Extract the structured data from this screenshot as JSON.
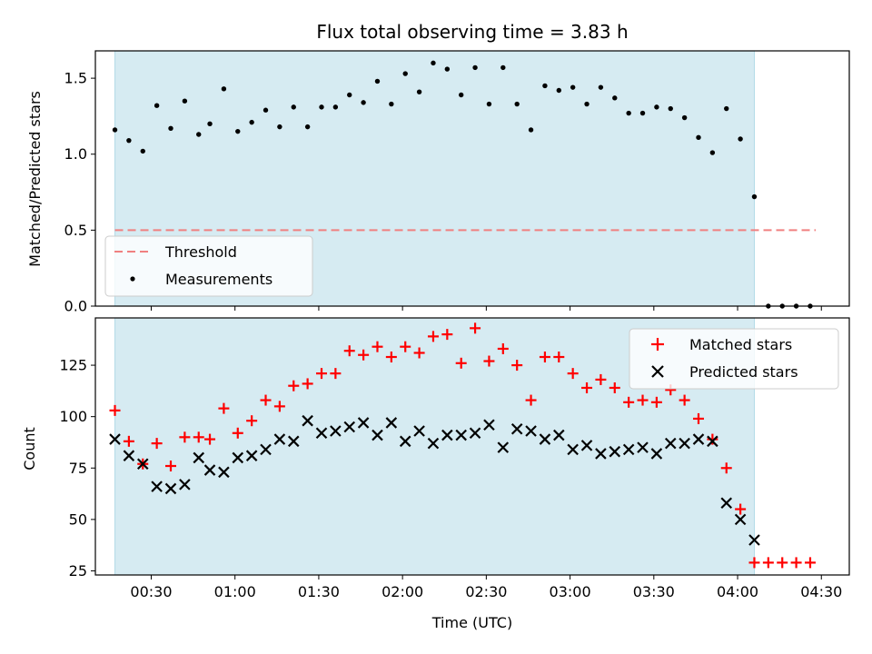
{
  "chart_data": [
    {
      "type": "scatter",
      "title": "Flux total observing time = 3.83 h",
      "xlabel": "",
      "ylabel": "Matched/Predicted stars",
      "xlim": [
        "00:10",
        "04:40"
      ],
      "ylim": [
        0,
        1.68
      ],
      "yticks": [
        "0.0",
        "0.5",
        "1.0",
        "1.5"
      ],
      "xticks": [
        "00:30",
        "01:00",
        "01:30",
        "02:00",
        "02:30",
        "03:00",
        "03:30",
        "04:00",
        "04:30"
      ],
      "shaded_span": [
        "00:17",
        "04:06"
      ],
      "threshold": {
        "name": "Threshold",
        "value": 0.5,
        "from": "00:17",
        "to": "04:28",
        "color": "#f08080",
        "style": "dashed"
      },
      "legend": {
        "position": "lower-left",
        "entries": [
          "Threshold",
          "Measurements"
        ]
      },
      "series": [
        {
          "name": "Measurements",
          "marker": "dot",
          "color": "#000000",
          "x": [
            "00:17",
            "00:22",
            "00:27",
            "00:32",
            "00:37",
            "00:42",
            "00:47",
            "00:51",
            "00:56",
            "01:01",
            "01:06",
            "01:11",
            "01:16",
            "01:21",
            "01:26",
            "01:31",
            "01:36",
            "01:41",
            "01:46",
            "01:51",
            "01:56",
            "02:01",
            "02:06",
            "02:11",
            "02:16",
            "02:21",
            "02:26",
            "02:31",
            "02:36",
            "02:41",
            "02:46",
            "02:51",
            "02:56",
            "03:01",
            "03:06",
            "03:11",
            "03:16",
            "03:21",
            "03:26",
            "03:31",
            "03:36",
            "03:41",
            "03:46",
            "03:51",
            "03:56",
            "04:01",
            "04:06",
            "04:11",
            "04:16",
            "04:21",
            "04:26"
          ],
          "y": [
            1.16,
            1.09,
            1.02,
            1.32,
            1.17,
            1.35,
            1.13,
            1.2,
            1.43,
            1.15,
            1.21,
            1.29,
            1.18,
            1.31,
            1.18,
            1.31,
            1.31,
            1.39,
            1.34,
            1.48,
            1.33,
            1.53,
            1.41,
            1.6,
            1.56,
            1.39,
            1.57,
            1.33,
            1.57,
            1.33,
            1.16,
            1.45,
            1.42,
            1.44,
            1.33,
            1.44,
            1.37,
            1.27,
            1.27,
            1.31,
            1.3,
            1.24,
            1.11,
            1.01,
            1.3,
            1.1,
            0.72,
            0.0,
            0.0,
            0.0,
            0.0
          ]
        }
      ]
    },
    {
      "type": "scatter",
      "title": "",
      "xlabel": "Time (UTC)",
      "ylabel": "Count",
      "xlim": [
        "00:10",
        "04:40"
      ],
      "ylim": [
        23,
        148
      ],
      "yticks": [
        "25",
        "50",
        "75",
        "100",
        "125"
      ],
      "xticks": [
        "00:30",
        "01:00",
        "01:30",
        "02:00",
        "02:30",
        "03:00",
        "03:30",
        "04:00",
        "04:30"
      ],
      "shaded_span": [
        "00:17",
        "04:06"
      ],
      "legend": {
        "position": "upper-right",
        "entries": [
          "Matched stars",
          "Predicted stars"
        ]
      },
      "series": [
        {
          "name": "Matched stars",
          "marker": "plus",
          "color": "#ff0000",
          "x": [
            "00:17",
            "00:22",
            "00:27",
            "00:32",
            "00:37",
            "00:42",
            "00:47",
            "00:51",
            "00:56",
            "01:01",
            "01:06",
            "01:11",
            "01:16",
            "01:21",
            "01:26",
            "01:31",
            "01:36",
            "01:41",
            "01:46",
            "01:51",
            "01:56",
            "02:01",
            "02:06",
            "02:11",
            "02:16",
            "02:21",
            "02:26",
            "02:31",
            "02:36",
            "02:41",
            "02:46",
            "02:51",
            "02:56",
            "03:01",
            "03:06",
            "03:11",
            "03:16",
            "03:21",
            "03:26",
            "03:31",
            "03:36",
            "03:41",
            "03:46",
            "03:51",
            "03:56",
            "04:01",
            "04:06",
            "04:11",
            "04:16",
            "04:21",
            "04:26"
          ],
          "y": [
            103,
            88,
            77,
            87,
            76,
            90,
            90,
            89,
            104,
            92,
            98,
            108,
            105,
            115,
            116,
            121,
            121,
            132,
            130,
            134,
            129,
            134,
            131,
            139,
            140,
            126,
            143,
            127,
            133,
            125,
            108,
            129,
            129,
            121,
            114,
            118,
            114,
            107,
            108,
            107,
            113,
            108,
            99,
            89,
            75,
            55,
            29,
            29,
            29,
            29,
            29
          ]
        },
        {
          "name": "Predicted stars",
          "marker": "x",
          "color": "#000000",
          "x": [
            "00:17",
            "00:22",
            "00:27",
            "00:32",
            "00:37",
            "00:42",
            "00:47",
            "00:51",
            "00:56",
            "01:01",
            "01:06",
            "01:11",
            "01:16",
            "01:21",
            "01:26",
            "01:31",
            "01:36",
            "01:41",
            "01:46",
            "01:51",
            "01:56",
            "02:01",
            "02:06",
            "02:11",
            "02:16",
            "02:21",
            "02:26",
            "02:31",
            "02:36",
            "02:41",
            "02:46",
            "02:51",
            "02:56",
            "03:01",
            "03:06",
            "03:11",
            "03:16",
            "03:21",
            "03:26",
            "03:31",
            "03:36",
            "03:41",
            "03:46",
            "03:51",
            "03:56",
            "04:01",
            "04:06"
          ],
          "y": [
            89,
            81,
            77,
            66,
            65,
            67,
            80,
            74,
            73,
            80,
            81,
            84,
            89,
            88,
            98,
            92,
            93,
            95,
            97,
            91,
            97,
            88,
            93,
            87,
            91,
            91,
            92,
            96,
            85,
            94,
            93,
            89,
            91,
            84,
            86,
            82,
            83,
            84,
            85,
            82,
            87,
            87,
            89,
            88,
            58,
            50,
            40
          ]
        }
      ]
    }
  ]
}
